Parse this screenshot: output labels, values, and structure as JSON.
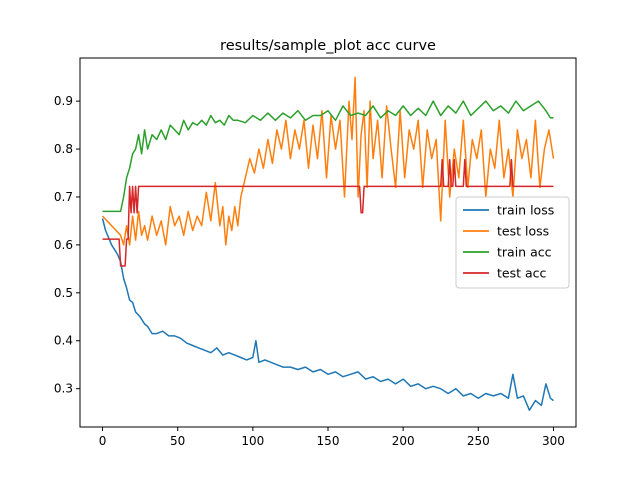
{
  "chart_data": {
    "type": "line",
    "title": "results/sample_plot acc curve",
    "xlabel": "",
    "ylabel": "",
    "xlim": [
      -15,
      315
    ],
    "ylim": [
      0.22,
      0.99
    ],
    "xticks": [
      0,
      50,
      100,
      150,
      200,
      250,
      300
    ],
    "yticks": [
      0.3,
      0.4,
      0.5,
      0.6,
      0.7,
      0.8,
      0.9
    ],
    "grid": false,
    "legend_position": "center-right",
    "series": [
      {
        "name": "train loss",
        "color": "#1f77b4",
        "x": [
          0,
          2,
          4,
          6,
          8,
          10,
          12,
          14,
          16,
          18,
          20,
          22,
          25,
          28,
          30,
          33,
          36,
          40,
          44,
          48,
          52,
          56,
          60,
          64,
          68,
          72,
          76,
          80,
          84,
          88,
          92,
          96,
          100,
          102,
          104,
          108,
          112,
          116,
          120,
          125,
          130,
          135,
          140,
          145,
          150,
          155,
          160,
          165,
          170,
          175,
          180,
          185,
          190,
          195,
          200,
          205,
          210,
          215,
          220,
          225,
          230,
          235,
          240,
          245,
          250,
          255,
          260,
          265,
          270,
          273,
          276,
          280,
          284,
          288,
          292,
          295,
          298,
          300
        ],
        "y": [
          0.655,
          0.63,
          0.615,
          0.6,
          0.59,
          0.58,
          0.565,
          0.53,
          0.51,
          0.485,
          0.48,
          0.46,
          0.45,
          0.435,
          0.43,
          0.415,
          0.415,
          0.42,
          0.41,
          0.41,
          0.405,
          0.395,
          0.39,
          0.385,
          0.38,
          0.375,
          0.385,
          0.37,
          0.375,
          0.37,
          0.365,
          0.36,
          0.365,
          0.4,
          0.355,
          0.36,
          0.355,
          0.35,
          0.345,
          0.345,
          0.34,
          0.345,
          0.335,
          0.34,
          0.33,
          0.335,
          0.325,
          0.33,
          0.335,
          0.32,
          0.325,
          0.315,
          0.32,
          0.31,
          0.32,
          0.305,
          0.31,
          0.3,
          0.305,
          0.3,
          0.29,
          0.3,
          0.285,
          0.29,
          0.28,
          0.29,
          0.285,
          0.29,
          0.28,
          0.33,
          0.28,
          0.285,
          0.255,
          0.275,
          0.265,
          0.31,
          0.28,
          0.275
        ]
      },
      {
        "name": "test loss",
        "color": "#ff7f0e",
        "x": [
          0,
          3,
          6,
          9,
          12,
          14,
          16,
          18,
          20,
          22,
          24,
          26,
          28,
          30,
          33,
          36,
          39,
          42,
          45,
          48,
          51,
          54,
          57,
          60,
          63,
          66,
          69,
          72,
          75,
          78,
          80,
          82,
          84,
          86,
          88,
          90,
          92,
          95,
          98,
          101,
          104,
          107,
          110,
          113,
          116,
          119,
          122,
          125,
          128,
          131,
          134,
          137,
          140,
          143,
          146,
          149,
          152,
          155,
          158,
          161,
          164,
          166,
          168,
          170,
          172,
          174,
          176,
          178,
          180,
          183,
          186,
          189,
          192,
          195,
          198,
          201,
          204,
          207,
          210,
          213,
          216,
          219,
          222,
          225,
          228,
          231,
          234,
          237,
          240,
          243,
          246,
          249,
          252,
          255,
          258,
          261,
          264,
          267,
          270,
          273,
          276,
          279,
          282,
          285,
          288,
          291,
          294,
          297,
          300
        ],
        "y": [
          0.66,
          0.65,
          0.64,
          0.63,
          0.62,
          0.6,
          0.64,
          0.6,
          0.66,
          0.61,
          0.67,
          0.62,
          0.64,
          0.61,
          0.66,
          0.62,
          0.65,
          0.6,
          0.68,
          0.64,
          0.66,
          0.62,
          0.67,
          0.63,
          0.66,
          0.64,
          0.71,
          0.65,
          0.73,
          0.64,
          0.68,
          0.6,
          0.66,
          0.63,
          0.68,
          0.64,
          0.7,
          0.74,
          0.78,
          0.75,
          0.8,
          0.76,
          0.82,
          0.77,
          0.84,
          0.8,
          0.86,
          0.78,
          0.84,
          0.8,
          0.86,
          0.76,
          0.85,
          0.78,
          0.88,
          0.74,
          0.87,
          0.8,
          0.86,
          0.7,
          0.9,
          0.82,
          0.95,
          0.7,
          0.83,
          0.88,
          0.72,
          0.9,
          0.78,
          0.86,
          0.74,
          0.89,
          0.8,
          0.72,
          0.88,
          0.74,
          0.84,
          0.8,
          0.86,
          0.72,
          0.84,
          0.78,
          0.82,
          0.65,
          0.86,
          0.7,
          0.8,
          0.74,
          0.86,
          0.72,
          0.82,
          0.78,
          0.84,
          0.7,
          0.8,
          0.76,
          0.86,
          0.74,
          0.8,
          0.7,
          0.84,
          0.78,
          0.82,
          0.74,
          0.86,
          0.72,
          0.8,
          0.84,
          0.78
        ]
      },
      {
        "name": "train acc",
        "color": "#2ca02c",
        "x": [
          0,
          3,
          6,
          9,
          12,
          14,
          16,
          18,
          20,
          22,
          24,
          26,
          28,
          30,
          33,
          36,
          39,
          42,
          45,
          48,
          51,
          54,
          57,
          60,
          63,
          66,
          69,
          72,
          75,
          78,
          81,
          84,
          87,
          90,
          95,
          100,
          105,
          110,
          115,
          120,
          125,
          130,
          135,
          140,
          145,
          150,
          155,
          160,
          165,
          170,
          175,
          180,
          185,
          190,
          195,
          200,
          205,
          210,
          215,
          220,
          225,
          230,
          235,
          240,
          245,
          250,
          255,
          260,
          265,
          270,
          275,
          280,
          285,
          290,
          295,
          298,
          300
        ],
        "y": [
          0.67,
          0.67,
          0.67,
          0.67,
          0.67,
          0.7,
          0.74,
          0.76,
          0.79,
          0.8,
          0.83,
          0.79,
          0.84,
          0.8,
          0.83,
          0.82,
          0.84,
          0.82,
          0.85,
          0.84,
          0.83,
          0.86,
          0.84,
          0.855,
          0.85,
          0.86,
          0.85,
          0.87,
          0.855,
          0.86,
          0.85,
          0.87,
          0.86,
          0.86,
          0.855,
          0.87,
          0.86,
          0.875,
          0.86,
          0.875,
          0.865,
          0.88,
          0.86,
          0.87,
          0.87,
          0.88,
          0.86,
          0.89,
          0.87,
          0.875,
          0.87,
          0.89,
          0.865,
          0.88,
          0.87,
          0.89,
          0.87,
          0.885,
          0.87,
          0.9,
          0.87,
          0.89,
          0.875,
          0.9,
          0.87,
          0.885,
          0.9,
          0.88,
          0.89,
          0.875,
          0.9,
          0.88,
          0.89,
          0.9,
          0.88,
          0.865,
          0.865
        ]
      },
      {
        "name": "test acc",
        "color": "#d62728",
        "x": [
          0,
          11,
          12,
          15,
          16,
          17,
          18,
          19,
          20,
          21,
          22,
          23,
          24,
          25,
          26,
          27,
          100,
          170,
          171,
          172,
          173,
          174,
          175,
          220,
          225,
          226,
          227,
          230,
          231,
          232,
          233,
          234,
          235,
          240,
          241,
          242,
          243,
          244,
          260,
          270,
          271,
          272,
          273,
          274,
          275,
          276,
          300
        ],
        "y": [
          0.612,
          0.612,
          0.556,
          0.556,
          0.612,
          0.612,
          0.722,
          0.667,
          0.722,
          0.667,
          0.722,
          0.667,
          0.722,
          0.722,
          0.722,
          0.722,
          0.722,
          0.722,
          0.722,
          0.667,
          0.667,
          0.722,
          0.722,
          0.722,
          0.722,
          0.778,
          0.722,
          0.722,
          0.778,
          0.722,
          0.722,
          0.778,
          0.722,
          0.722,
          0.778,
          0.722,
          0.722,
          0.722,
          0.722,
          0.722,
          0.722,
          0.778,
          0.722,
          0.722,
          0.722,
          0.722,
          0.722
        ]
      }
    ]
  }
}
